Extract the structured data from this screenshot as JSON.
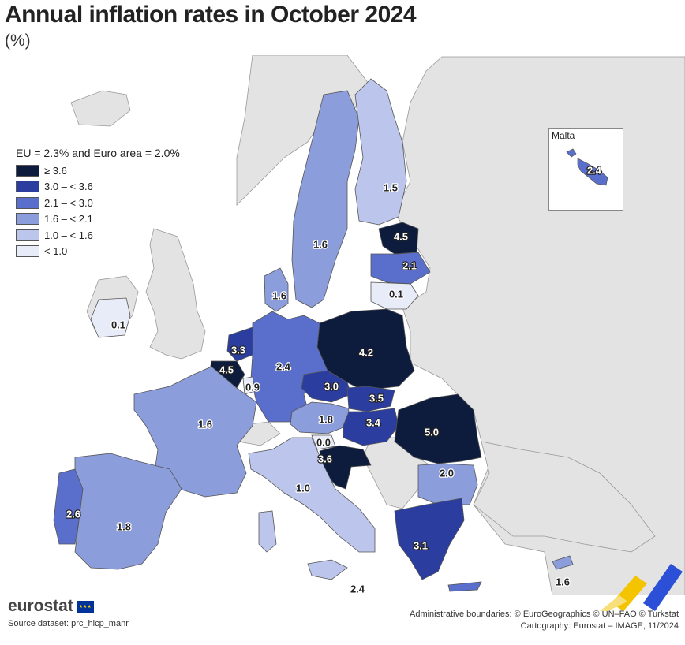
{
  "title": "Annual inflation rates in October 2024",
  "subtitle": "(%)",
  "legend": {
    "title": "EU = 2.3% and Euro area = 2.0%",
    "classes": [
      {
        "label": "≥ 3.6",
        "color": "#0d1c3d"
      },
      {
        "label": "3.0 – < 3.6",
        "color": "#2b3e9f"
      },
      {
        "label": "2.1 – < 3.0",
        "color": "#5a6fcc"
      },
      {
        "label": "1.6 – < 2.1",
        "color": "#8c9ddb"
      },
      {
        "label": "1.0 – < 1.6",
        "color": "#bcc6ec"
      },
      {
        "label": "< 1.0",
        "color": "#e8ebf8"
      }
    ]
  },
  "colors": {
    "sea": "#ffffff",
    "non_eu": "#e3e3e3",
    "border": "#555555"
  },
  "countries": [
    {
      "code": "IE",
      "value": "0.1"
    },
    {
      "code": "PT",
      "value": "2.6"
    },
    {
      "code": "ES",
      "value": "1.8"
    },
    {
      "code": "FR",
      "value": "1.6"
    },
    {
      "code": "BE",
      "value": "4.5"
    },
    {
      "code": "NL",
      "value": "3.3"
    },
    {
      "code": "LU",
      "value": "0.9"
    },
    {
      "code": "DE",
      "value": "2.4"
    },
    {
      "code": "DK",
      "value": "1.6"
    },
    {
      "code": "SE",
      "value": "1.6"
    },
    {
      "code": "FI",
      "value": "1.5"
    },
    {
      "code": "EE",
      "value": "4.5"
    },
    {
      "code": "LV",
      "value": "2.1"
    },
    {
      "code": "LT",
      "value": "0.1"
    },
    {
      "code": "PL",
      "value": "4.2"
    },
    {
      "code": "CZ",
      "value": "3.0"
    },
    {
      "code": "SK",
      "value": "3.5"
    },
    {
      "code": "AT",
      "value": "1.8"
    },
    {
      "code": "HU",
      "value": "3.4"
    },
    {
      "code": "SI",
      "value": "0.0"
    },
    {
      "code": "HR",
      "value": "3.6"
    },
    {
      "code": "IT",
      "value": "1.0"
    },
    {
      "code": "RO",
      "value": "5.0"
    },
    {
      "code": "BG",
      "value": "2.0"
    },
    {
      "code": "EL",
      "value": "3.1"
    },
    {
      "code": "CY",
      "value": "1.6"
    },
    {
      "code": "MT",
      "value": "2.4"
    }
  ],
  "extra_labels": {
    "malta_mainland": "2.4"
  },
  "malta_inset": {
    "title": "Malta",
    "value": "2.4"
  },
  "footer": {
    "brand": "eurostat",
    "source": "Source dataset: prc_hicp_manr",
    "credits_line1": "Administrative boundaries: © EuroGeographics © UN–FAO © Turkstat",
    "credits_line2": "Cartography: Eurostat – IMAGE, 11/2024"
  }
}
